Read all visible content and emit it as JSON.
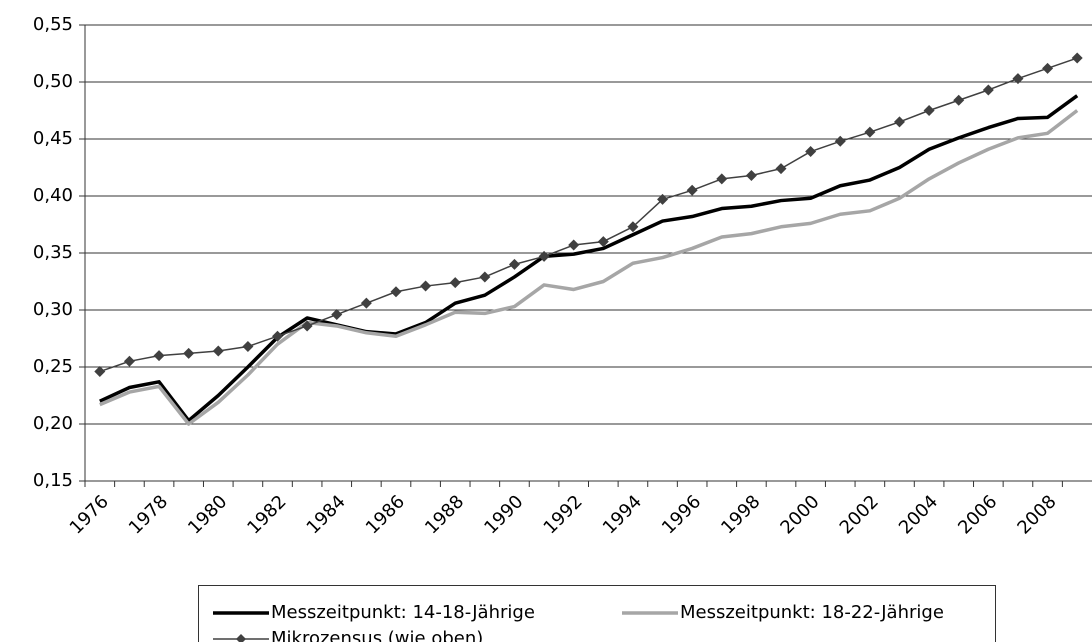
{
  "chart_data": {
    "type": "line",
    "categories": [
      "1976",
      null,
      "1978",
      null,
      "1980",
      null,
      "1982",
      null,
      "1984",
      null,
      "1986",
      null,
      "1988",
      null,
      "1990",
      null,
      "1992",
      null,
      "1994",
      null,
      "1996",
      null,
      "1998",
      null,
      "2000",
      null,
      "2002",
      null,
      "2004",
      null,
      "2006",
      null,
      "2008",
      null
    ],
    "series": [
      {
        "name": "Messzeitpunkt: 14-18-Jährige",
        "color": "#000000",
        "values": [
          0.22,
          0.232,
          0.237,
          0.203,
          0.225,
          0.25,
          0.276,
          0.293,
          0.287,
          0.281,
          0.279,
          0.289,
          0.306,
          0.313,
          0.329,
          0.347,
          0.349,
          0.354,
          0.366,
          0.378,
          0.382,
          0.389,
          0.391,
          0.396,
          0.398,
          0.409,
          0.414,
          0.425,
          0.441,
          0.451,
          0.46,
          0.468,
          0.469,
          0.488
        ]
      },
      {
        "name": "Messzeitpunkt: 18-22-Jährige",
        "color": "#a6a6a6",
        "values": [
          0.217,
          0.228,
          0.233,
          0.2,
          0.219,
          0.243,
          0.27,
          0.289,
          0.286,
          0.28,
          0.277,
          0.287,
          0.298,
          0.297,
          0.303,
          0.322,
          0.318,
          0.325,
          0.341,
          0.346,
          0.354,
          0.364,
          0.367,
          0.373,
          0.376,
          0.384,
          0.387,
          0.398,
          0.415,
          0.429,
          0.441,
          0.451,
          0.455,
          0.475
        ]
      },
      {
        "name": "Mikrozensus (wie oben)",
        "color": "#404040",
        "marker": "diamond",
        "values": [
          0.246,
          0.255,
          0.26,
          0.262,
          0.264,
          0.268,
          0.277,
          0.286,
          0.296,
          0.306,
          0.316,
          0.321,
          0.324,
          0.329,
          0.34,
          0.347,
          0.357,
          0.36,
          0.373,
          0.397,
          0.405,
          0.415,
          0.418,
          0.424,
          0.439,
          0.448,
          0.456,
          0.465,
          0.475,
          0.484,
          0.493,
          0.503,
          0.512,
          0.521
        ]
      }
    ],
    "ylim": [
      0.15,
      0.55
    ],
    "yticks": [
      {
        "value": 0.15,
        "label": "0,15"
      },
      {
        "value": 0.2,
        "label": "0,20"
      },
      {
        "value": 0.25,
        "label": "0,25"
      },
      {
        "value": 0.3,
        "label": "0,30"
      },
      {
        "value": 0.35,
        "label": "0,35"
      },
      {
        "value": 0.4,
        "label": "0,40"
      },
      {
        "value": 0.45,
        "label": "0,45"
      },
      {
        "value": 0.5,
        "label": "0,50"
      },
      {
        "value": 0.55,
        "label": "0,55"
      }
    ],
    "grid": true
  }
}
